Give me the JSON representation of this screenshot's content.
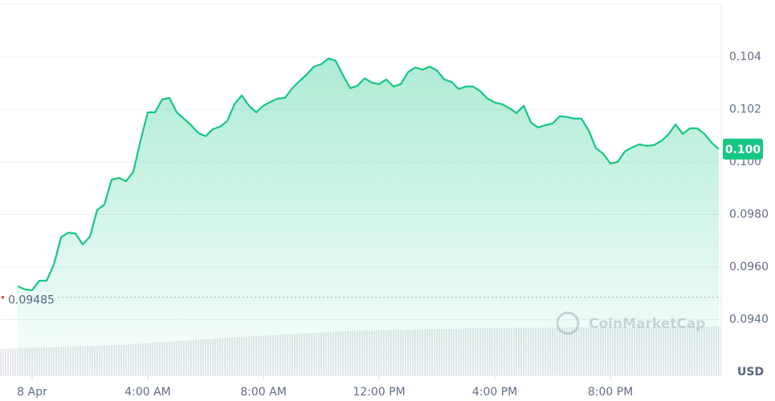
{
  "chart_data": {
    "type": "line",
    "color": "#16c784",
    "x": [
      -0.5,
      -0.25,
      0,
      0.25,
      0.5,
      0.75,
      1,
      1.25,
      1.5,
      1.75,
      2,
      2.25,
      2.5,
      2.75,
      3,
      3.25,
      3.5,
      3.75,
      4,
      4.25,
      4.5,
      4.75,
      5,
      5.25,
      5.5,
      5.75,
      6,
      6.25,
      6.5,
      6.75,
      7,
      7.25,
      7.5,
      7.75,
      8,
      8.25,
      8.5,
      8.75,
      9,
      9.25,
      9.5,
      9.75,
      10,
      10.25,
      10.5,
      10.75,
      11,
      11.25,
      11.5,
      11.75,
      12,
      12.25,
      12.5,
      12.75,
      13,
      13.25,
      13.5,
      13.75,
      14,
      14.25,
      14.5,
      14.75,
      15,
      15.25,
      15.5,
      15.75,
      16,
      16.25,
      16.5,
      16.75,
      17,
      17.25,
      17.5,
      17.75,
      18,
      18.25,
      18.5,
      18.75,
      19,
      19.25,
      19.5,
      19.75,
      20,
      20.25,
      20.5,
      20.75,
      21,
      21.25,
      21.5,
      21.75,
      22,
      22.25,
      22.5,
      22.75,
      23,
      23.25,
      23.5,
      23.75
    ],
    "values": [
      0.09527,
      0.09515,
      0.09512,
      0.09548,
      0.09548,
      0.09609,
      0.09713,
      0.09731,
      0.09728,
      0.09686,
      0.09716,
      0.09817,
      0.09838,
      0.09933,
      0.09939,
      0.09927,
      0.09963,
      0.10082,
      0.10189,
      0.10189,
      0.10238,
      0.10244,
      0.10189,
      0.10165,
      0.1014,
      0.1011,
      0.10098,
      0.10125,
      0.10134,
      0.10156,
      0.1022,
      0.10253,
      0.10214,
      0.10189,
      0.10214,
      0.10229,
      0.10241,
      0.10244,
      0.10281,
      0.10308,
      0.10333,
      0.10363,
      0.10372,
      0.10394,
      0.10385,
      0.1033,
      0.10281,
      0.1029,
      0.10318,
      0.10302,
      0.10296,
      0.10314,
      0.10287,
      0.10296,
      0.10342,
      0.1036,
      0.10351,
      0.10363,
      0.10348,
      0.10314,
      0.10305,
      0.10278,
      0.10287,
      0.10287,
      0.10269,
      0.10241,
      0.10226,
      0.1022,
      0.10205,
      0.10186,
      0.10214,
      0.1015,
      0.10131,
      0.1014,
      0.10147,
      0.10174,
      0.10171,
      0.10165,
      0.10165,
      0.10119,
      0.10052,
      0.10031,
      0.09994,
      0.1,
      0.1004,
      0.10055,
      0.10067,
      0.10061,
      0.10064,
      0.10079,
      0.10104,
      0.10143,
      0.10107,
      0.10128,
      0.10128,
      0.10107,
      0.10073,
      0.10049
    ],
    "last_price_label": "0.100",
    "open_price": 0.09485,
    "xlim": [
      -1.11,
      23.83
    ],
    "xticks": [
      {
        "value": 0,
        "label": "8 Apr"
      },
      {
        "value": 4,
        "label": "4:00 AM"
      },
      {
        "value": 8,
        "label": "8:00 AM"
      },
      {
        "value": 12,
        "label": "12:00 PM"
      },
      {
        "value": 16,
        "label": "4:00 PM"
      },
      {
        "value": 20,
        "label": "8:00 PM"
      }
    ],
    "ylim": [
      0.09188,
      0.10601
    ],
    "yticks": [
      0.104,
      0.102,
      {
        "value": 0.1,
        "label": "0.100"
      },
      {
        "value": 0.098,
        "label": "0.0980"
      },
      {
        "value": 0.096,
        "label": "0.0960"
      },
      {
        "value": 0.094,
        "label": "0.0940"
      }
    ],
    "y_unit": "USD",
    "watermark": "CoinMarketCap",
    "grid": true
  }
}
